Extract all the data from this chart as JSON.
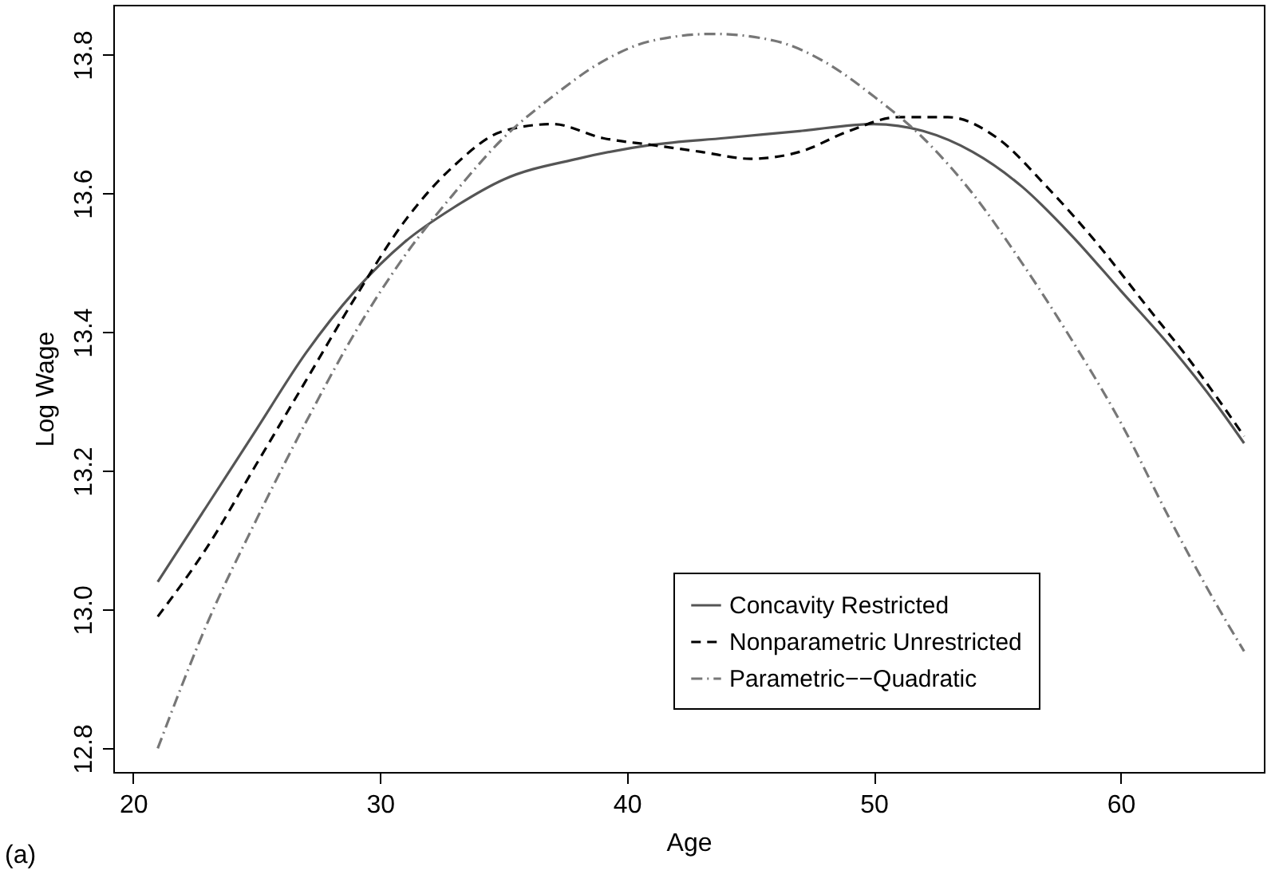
{
  "chart_data": {
    "type": "line",
    "xlabel": "Age",
    "ylabel": "Log Wage",
    "annotations": [
      "(a)"
    ],
    "xlim": [
      19.2,
      65.8
    ],
    "xticks": [
      20,
      30,
      40,
      50,
      60
    ],
    "ylim": [
      12.766,
      13.872
    ],
    "yticks": [
      12.8,
      {
        "value": 13.0,
        "label": "13.0"
      },
      13.2,
      13.4,
      13.6,
      13.8
    ],
    "grid": false,
    "legend": "bottom right",
    "marker": "none",
    "series": [
      {
        "name": "Concavity Restricted",
        "color": "#555555",
        "line_style": "solid",
        "x": [
          21,
          23,
          25,
          27,
          29,
          31,
          33,
          35,
          38,
          41,
          44,
          47,
          50,
          52,
          54,
          56,
          58,
          60,
          62,
          64,
          65
        ],
        "values": [
          13.04,
          13.15,
          13.26,
          13.37,
          13.46,
          13.53,
          13.58,
          13.62,
          13.65,
          13.67,
          13.68,
          13.69,
          13.7,
          13.69,
          13.66,
          13.61,
          13.54,
          13.46,
          13.38,
          13.29,
          13.24
        ]
      },
      {
        "name": "Nonparametric Unrestricted",
        "color": "#000000",
        "line_style": "dashed",
        "x": [
          21,
          23,
          25,
          27,
          29,
          31,
          33,
          35,
          37,
          39,
          41,
          43,
          45,
          47,
          49,
          51,
          53,
          55,
          57,
          59,
          61,
          63,
          65
        ],
        "values": [
          12.99,
          13.09,
          13.21,
          13.33,
          13.45,
          13.56,
          13.64,
          13.69,
          13.7,
          13.68,
          13.67,
          13.66,
          13.65,
          13.66,
          13.69,
          13.71,
          13.71,
          13.68,
          13.61,
          13.53,
          13.44,
          13.35,
          13.25
        ]
      },
      {
        "name": "Parametric−−Quadratic",
        "color": "#777777",
        "line_style": "dotted",
        "x": [
          21,
          23,
          25,
          27,
          29,
          31,
          33,
          35,
          37,
          39,
          41,
          43.5,
          46,
          48,
          50,
          52,
          54,
          56,
          58,
          60,
          62,
          64,
          65
        ],
        "values": [
          12.8,
          12.98,
          13.13,
          13.27,
          13.4,
          13.51,
          13.6,
          13.68,
          13.74,
          13.79,
          13.82,
          13.83,
          13.82,
          13.79,
          13.74,
          13.68,
          13.6,
          13.5,
          13.39,
          13.27,
          13.13,
          13.0,
          12.94
        ]
      }
    ]
  }
}
